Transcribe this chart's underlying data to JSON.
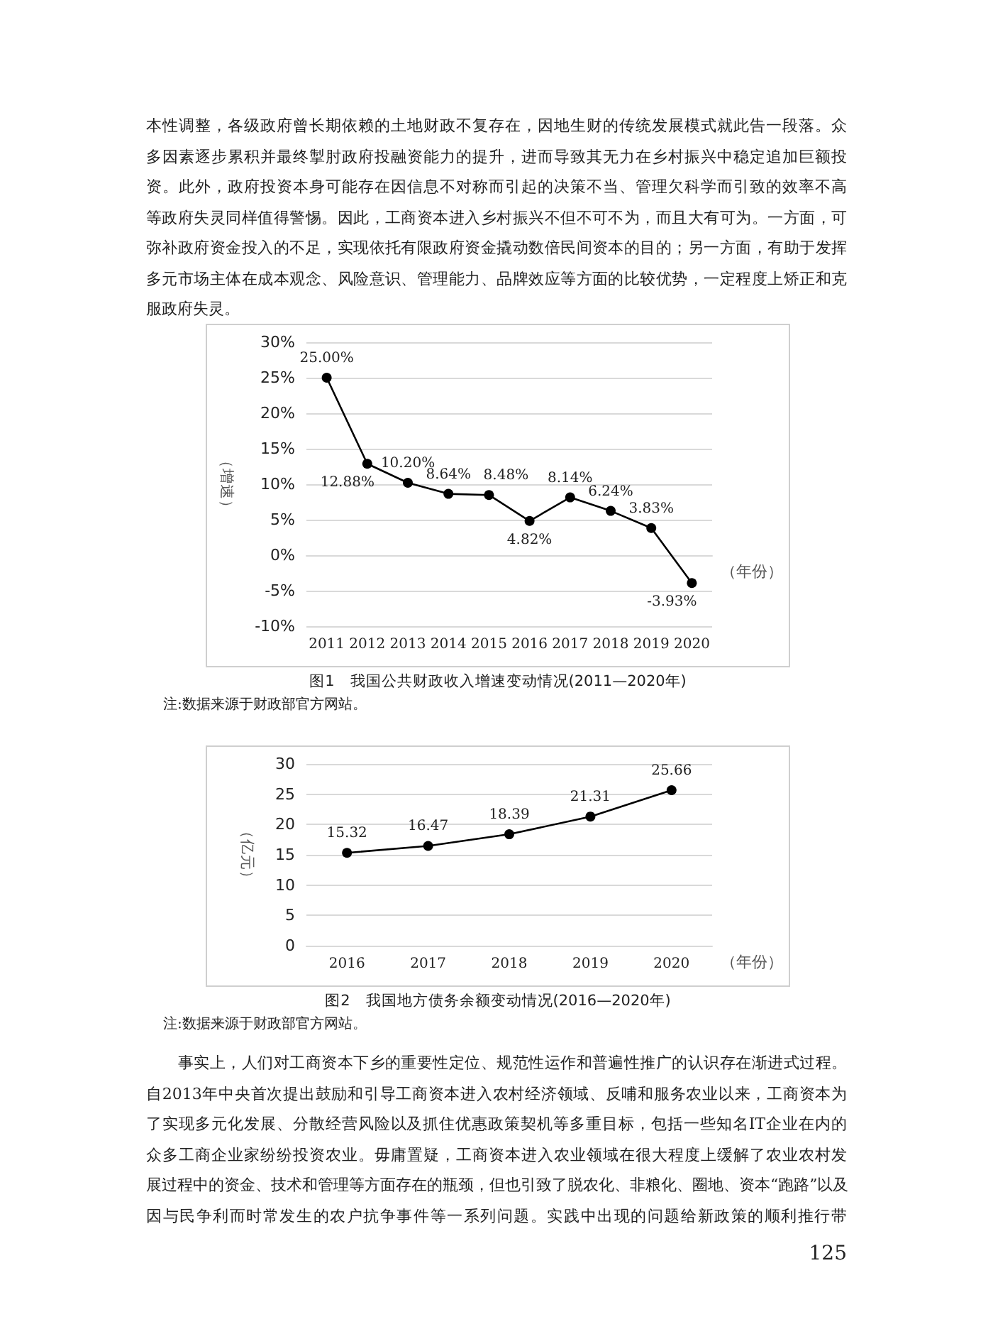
{
  "chart_data": [
    {
      "type": "other",
      "annotations": [
        "本性调整，各级政府曾长期依赖的土地财政不复存在，因地生财的传统发展模式就此告一段落。众",
        "多因素逐步累积并最终掣肘政府投融资能力的提升，进而导致其无力在乡村振兴中稳定追加巨额投",
        "资。此外，政府投资本身可能存在因信息不对称而引起的决策不当、管理欠科学而引致的效率不高",
        "等政府失灵同样值得警惕。因此，工商资本进入乡村振兴不但不可不为，而且大有可为。一方面，可",
        "弥补政府资金投入的不足，实现依托有限政府资金撬动数倍民间资本的目的；另一方面，有助于发挥",
        "多元市场主体在成本观念、风险意识、管理能力、品牌效应等方面的比较优势，一定程度上矫正和克",
        "服政府失灵。"
      ]
    },
    {
      "type": "line",
      "title": "图1　我国公共财政收入增速变动情况(2011—2020年)",
      "xlabel": "（年份）",
      "ylabel": "（增速）",
      "annotations": [
        "注:数据来源于财政部官方网站。"
      ],
      "categories": [
        "2011",
        "2012",
        "2013",
        "2014",
        "2015",
        "2016",
        "2017",
        "2018",
        "2019",
        "2020"
      ],
      "values": [
        25.0,
        12.88,
        10.2,
        8.64,
        8.48,
        4.82,
        8.14,
        6.24,
        3.83,
        -3.93
      ],
      "value_labels": [
        "25.00%",
        "12.88%",
        "10.20%",
        "8.64%",
        "8.48%",
        "4.82%",
        "8.14%",
        "6.24%",
        "3.83%",
        "-3.93%"
      ],
      "color": "#000000",
      "marker": "circle",
      "line_style": "solid",
      "grid": "y",
      "ylim": [
        -10,
        30
      ],
      "yticks": [
        {
          "value": -10,
          "label": "-10%"
        },
        {
          "value": -5,
          "label": "-5%"
        },
        {
          "value": 0,
          "label": "0%"
        },
        {
          "value": 5,
          "label": "5%"
        },
        {
          "value": 10,
          "label": "10%"
        },
        {
          "value": 15,
          "label": "15%"
        },
        {
          "value": 20,
          "label": "20%"
        },
        {
          "value": 25,
          "label": "25%"
        },
        {
          "value": 30,
          "label": "30%"
        }
      ]
    },
    {
      "type": "line",
      "title": "图2　我国地方债务余额变动情况(2016—2020年)",
      "xlabel": "（年份）",
      "ylabel": "（亿元）",
      "annotations": [
        "注:数据来源于财政部官方网站。"
      ],
      "categories": [
        "2016",
        "2017",
        "2018",
        "2019",
        "2020"
      ],
      "values": [
        15.32,
        16.47,
        18.39,
        21.31,
        25.66
      ],
      "data_labels": true,
      "color": "#000000",
      "marker": "circle",
      "line_style": "solid",
      "grid": "y",
      "ylim": [
        0,
        30
      ],
      "yticks": [
        0,
        5,
        10,
        15,
        20,
        25,
        30
      ]
    },
    {
      "type": "other",
      "annotations": [
        "　　事实上，人们对工商资本下乡的重要性定位、规范性运作和普遍性推广的认识存在渐进式过程。",
        "自2013年中央首次提出鼓励和引导工商资本进入农村经济领域、反哺和服务农业以来，工商资本为",
        "了实现多元化发展、分散经营风险以及抓住优惠政策契机等多重目标，包括一些知名IT企业在内的",
        "众多工商企业家纷纷投资农业。毋庸置疑，工商资本进入农业领域在很大程度上缓解了农业农村发",
        "展过程中的资金、技术和管理等方面存在的瓶颈，但也引致了脱农化、非粮化、圈地、资本“跑路”以及",
        "因与民争利而时常发生的农户抗争事件等一系列问题。实践中出现的问题给新政策的顺利推行带",
        "125"
      ]
    }
  ]
}
